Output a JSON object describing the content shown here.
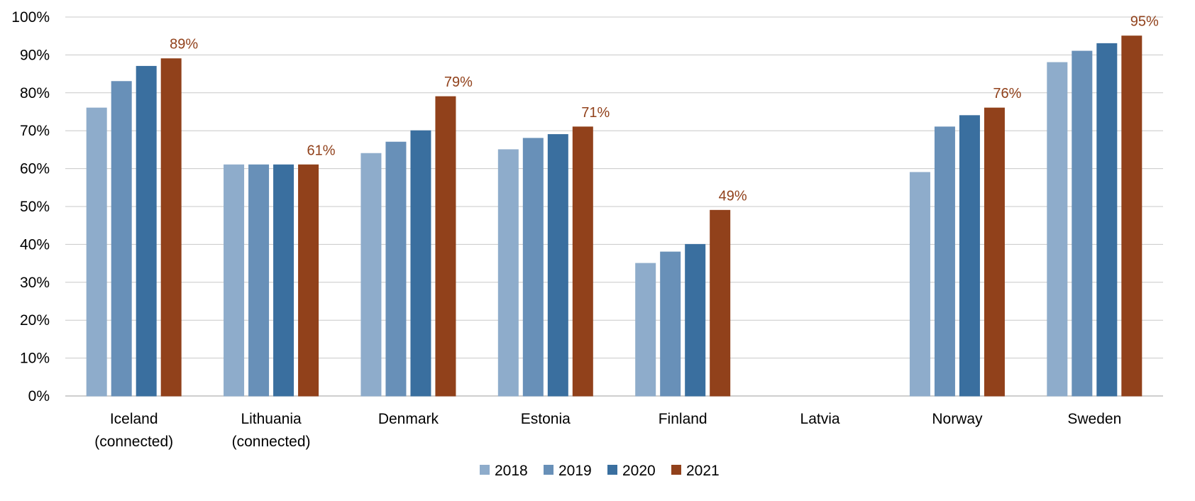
{
  "chart_data": {
    "type": "bar",
    "categories": [
      [
        "Iceland",
        "(connected)"
      ],
      [
        "Lithuania",
        "(connected)"
      ],
      [
        "Denmark"
      ],
      [
        "Estonia"
      ],
      [
        "Finland"
      ],
      [
        "Latvia"
      ],
      [
        "Norway"
      ],
      [
        "Sweden"
      ]
    ],
    "series": [
      {
        "name": "2018",
        "color": "#8eaccb",
        "values": [
          76,
          61,
          64,
          65,
          35,
          null,
          59,
          88
        ]
      },
      {
        "name": "2019",
        "color": "#6890b8",
        "values": [
          83,
          61,
          67,
          68,
          38,
          null,
          71,
          91
        ]
      },
      {
        "name": "2020",
        "color": "#3a6f9f",
        "values": [
          87,
          61,
          70,
          69,
          40,
          null,
          74,
          93
        ]
      },
      {
        "name": "2021",
        "color": "#91411b",
        "values": [
          89,
          61,
          79,
          71,
          49,
          null,
          76,
          95
        ]
      }
    ],
    "data_labels": {
      "series": "2021",
      "color": "#91411b",
      "texts": [
        "89%",
        "61%",
        "79%",
        "71%",
        "49%",
        "",
        "76%",
        "95%"
      ]
    },
    "yaxis": {
      "ylim": [
        0,
        100
      ],
      "ticks": [
        "0%",
        "10%",
        "20%",
        "30%",
        "40%",
        "50%",
        "60%",
        "70%",
        "80%",
        "90%",
        "100%"
      ]
    },
    "grid": true,
    "gridline_color": "#c8c8c8",
    "axis_color": "#bfbfbf",
    "legend_position": "bottom"
  }
}
